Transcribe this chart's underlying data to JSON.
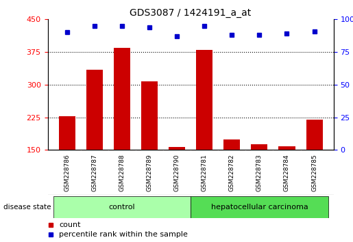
{
  "title": "GDS3087 / 1424191_a_at",
  "samples": [
    "GSM228786",
    "GSM228787",
    "GSM228788",
    "GSM228789",
    "GSM228790",
    "GSM228781",
    "GSM228782",
    "GSM228783",
    "GSM228784",
    "GSM228785"
  ],
  "counts": [
    228,
    335,
    385,
    307,
    157,
    380,
    175,
    163,
    158,
    220
  ],
  "percentiles": [
    90,
    95,
    95,
    94,
    87,
    95,
    88,
    88,
    89,
    91
  ],
  "ylim_left": [
    150,
    450
  ],
  "ylim_right": [
    0,
    100
  ],
  "yticks_left": [
    150,
    225,
    300,
    375,
    450
  ],
  "yticks_right": [
    0,
    25,
    50,
    75,
    100
  ],
  "bar_color": "#cc0000",
  "dot_color": "#0000cc",
  "control_color": "#aaffaa",
  "carcinoma_color": "#55dd55",
  "label_bg_color": "#cccccc",
  "plot_bg": "#ffffff",
  "bar_bottom": 150,
  "control_count": 5,
  "carcinoma_count": 5,
  "control_label": "control",
  "carcinoma_label": "hepatocellular carcinoma",
  "disease_state_label": "disease state",
  "legend_count": "count",
  "legend_percentile": "percentile rank within the sample",
  "grid_yticks": [
    225,
    300,
    375
  ],
  "figsize": [
    5.15,
    3.54
  ],
  "dpi": 100
}
